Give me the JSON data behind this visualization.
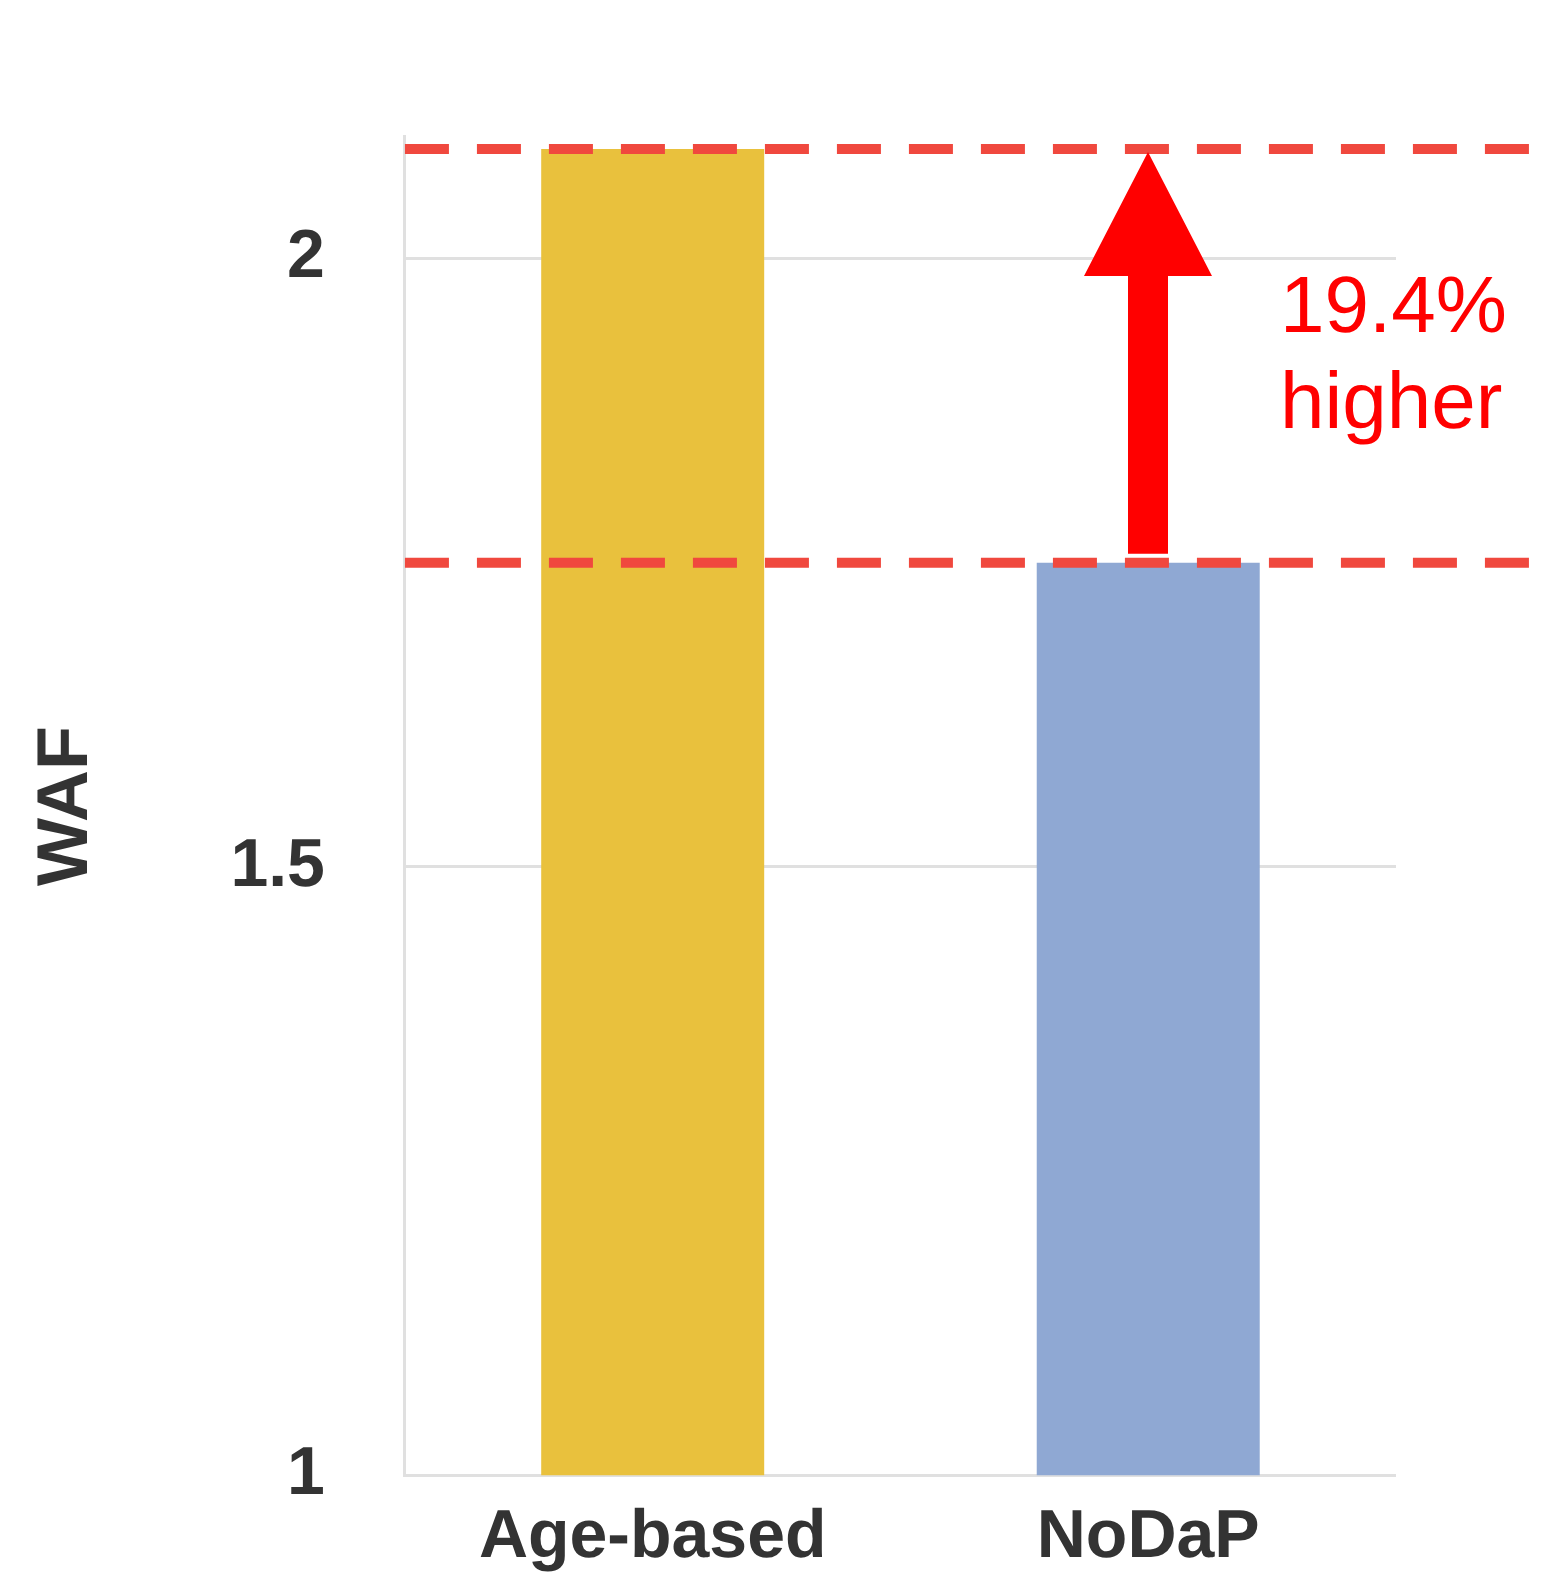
{
  "chart_data": {
    "type": "bar",
    "ylabel": "WAF",
    "categories": [
      "Age-based",
      "NoDaP"
    ],
    "values": [
      2.09,
      1.75
    ],
    "colors": [
      "#e9c13d",
      "#8fa8d3"
    ],
    "ylim": [
      1,
      2.1
    ],
    "yticks": [
      1,
      1.5,
      2
    ],
    "grid": "y",
    "legend": false,
    "ref_lines": [
      {
        "axis": "y",
        "value": 2.09,
        "color": "#f0483e",
        "line_style": "dashed"
      },
      {
        "axis": "y",
        "value": 1.75,
        "color": "#f0483e",
        "line_style": "dashed"
      }
    ],
    "annotations": [
      "19.4% higher"
    ]
  }
}
